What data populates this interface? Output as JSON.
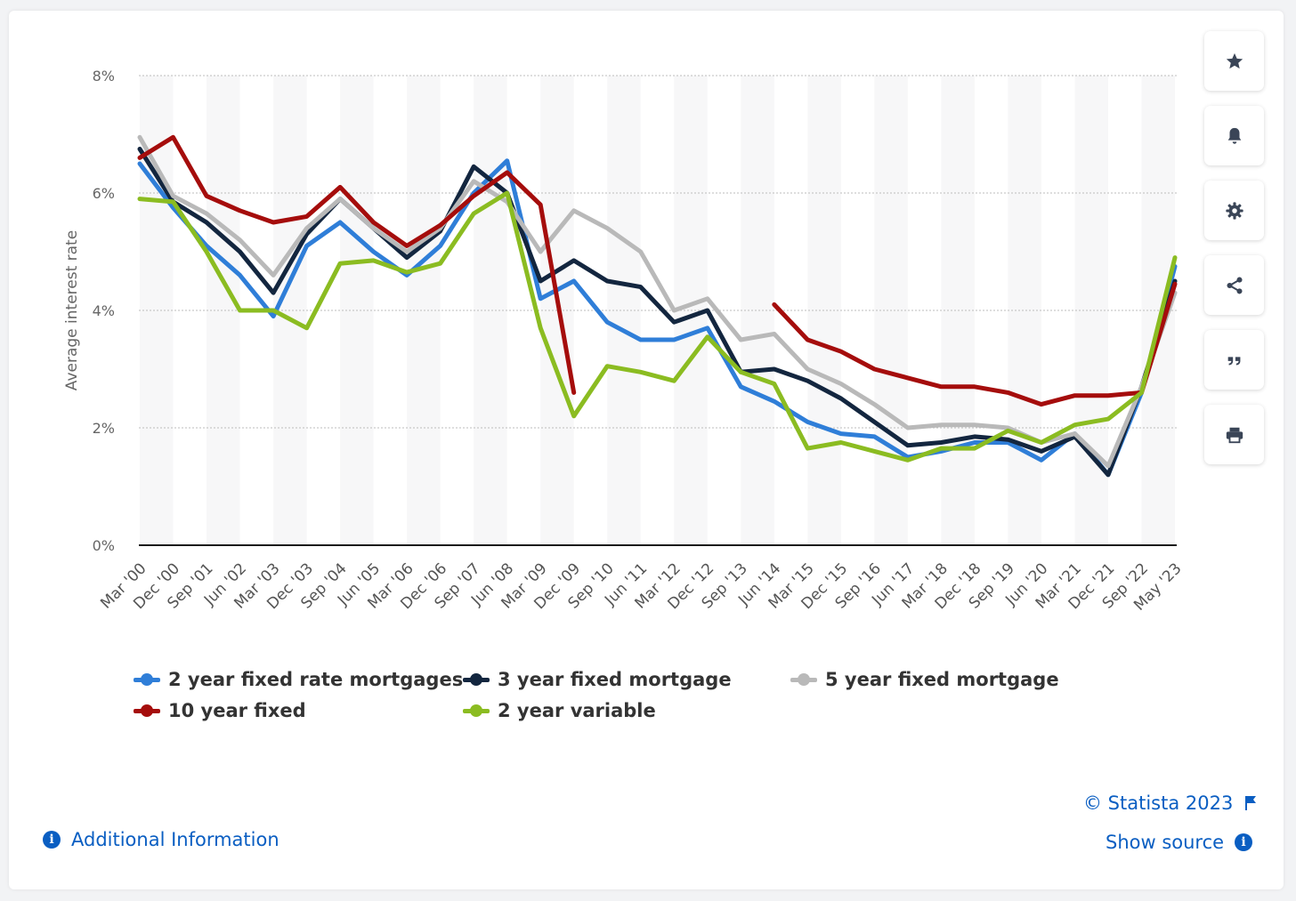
{
  "chart_data": {
    "type": "line",
    "title": "",
    "xlabel": "",
    "ylabel": "Average interest rate",
    "ylim": [
      0,
      8
    ],
    "yticks": [
      0,
      2,
      4,
      6,
      8
    ],
    "ytick_labels": [
      "0%",
      "2%",
      "4%",
      "6%",
      "8%"
    ],
    "grid": "horizontal dotted",
    "x_labels": [
      "Mar '00",
      "Dec '00",
      "Sep '01",
      "Jun '02",
      "Mar '03",
      "Dec '03",
      "Sep '04",
      "Jun '05",
      "Mar '06",
      "Dec '06",
      "Sep '07",
      "Jun '08",
      "Mar '09",
      "Dec '09",
      "Sep '10",
      "Jun '11",
      "Mar '12",
      "Dec '12",
      "Sep '13",
      "Jun '14",
      "Mar '15",
      "Dec '15",
      "Sep '16",
      "Jun '17",
      "Mar '18",
      "Dec '18",
      "Sep '19",
      "Jun '20",
      "Mar '21",
      "Dec '21",
      "Sep '22",
      "May '23"
    ],
    "legend_position": "bottom",
    "series": [
      {
        "name": "2 year fixed rate mortgages",
        "color": "#2f7ed8",
        "values": [
          6.5,
          5.75,
          5.1,
          4.6,
          3.9,
          5.1,
          5.5,
          5.0,
          4.6,
          5.1,
          6.0,
          6.55,
          4.2,
          4.5,
          3.8,
          3.5,
          3.5,
          3.7,
          2.7,
          2.45,
          2.1,
          1.9,
          1.85,
          1.5,
          1.6,
          1.75,
          1.75,
          1.45,
          1.9,
          1.2,
          2.6,
          4.75
        ]
      },
      {
        "name": "3 year fixed mortgage",
        "color": "#13263f",
        "values": [
          6.75,
          5.85,
          5.5,
          5.0,
          4.3,
          5.3,
          5.9,
          5.4,
          4.9,
          5.35,
          6.45,
          6.0,
          4.5,
          4.85,
          4.5,
          4.4,
          3.8,
          4.0,
          2.95,
          3.0,
          2.8,
          2.5,
          2.1,
          1.7,
          1.75,
          1.85,
          1.8,
          1.6,
          1.85,
          1.2,
          2.7,
          4.5
        ]
      },
      {
        "name": "5 year fixed mortgage",
        "color": "#b9b9b9",
        "values": [
          6.95,
          5.95,
          5.65,
          5.2,
          4.6,
          5.4,
          5.9,
          5.4,
          5.0,
          5.4,
          6.2,
          5.85,
          5.0,
          5.7,
          5.4,
          5.0,
          4.0,
          4.2,
          3.5,
          3.6,
          3.0,
          2.75,
          2.4,
          2.0,
          2.05,
          2.05,
          2.0,
          1.75,
          1.9,
          1.35,
          2.7,
          4.3
        ]
      },
      {
        "name": "10 year fixed",
        "color": "#a50d0c",
        "values": [
          6.6,
          6.95,
          5.95,
          5.7,
          5.5,
          5.6,
          6.1,
          5.5,
          5.1,
          5.45,
          5.95,
          6.35,
          5.8,
          2.6,
          null,
          null,
          null,
          null,
          null,
          4.1,
          3.5,
          3.3,
          3.0,
          2.85,
          2.7,
          2.7,
          2.6,
          2.4,
          2.55,
          2.55,
          2.6,
          4.45
        ]
      },
      {
        "name": "2 year variable",
        "color": "#8bbc21",
        "values": [
          5.9,
          5.85,
          5.0,
          4.0,
          4.0,
          3.7,
          4.8,
          4.85,
          4.65,
          4.8,
          5.65,
          6.0,
          3.7,
          2.2,
          3.05,
          2.95,
          2.8,
          3.55,
          2.95,
          2.75,
          1.65,
          1.75,
          1.6,
          1.45,
          1.65,
          1.65,
          1.95,
          1.75,
          2.05,
          2.15,
          2.6,
          4.9
        ]
      }
    ]
  },
  "toolbar": {
    "items": [
      {
        "name": "favorite-star-icon"
      },
      {
        "name": "notification-bell-icon"
      },
      {
        "name": "settings-gear-icon"
      },
      {
        "name": "share-icon"
      },
      {
        "name": "cite-quote-icon"
      },
      {
        "name": "print-icon"
      }
    ]
  },
  "footer": {
    "additional_info": "Additional Information",
    "copyright": "© Statista 2023",
    "show_source": "Show source",
    "link_color": "#0a5ec2"
  }
}
